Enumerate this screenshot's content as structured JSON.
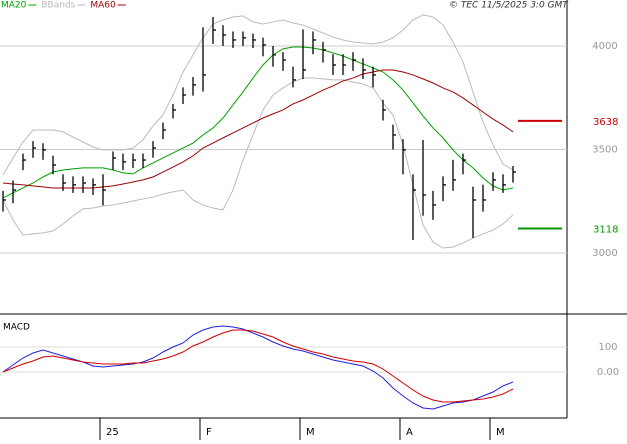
{
  "chart_data": {
    "type": "ohlc",
    "source": "© TEC 11/5/2025 3:0 GMT",
    "categories": [
      null,
      null,
      null,
      null,
      null,
      null,
      null,
      null,
      null,
      null,
      "25",
      null,
      null,
      null,
      null,
      null,
      null,
      null,
      null,
      null,
      "F",
      null,
      null,
      null,
      null,
      null,
      null,
      null,
      null,
      null,
      "M",
      null,
      null,
      null,
      null,
      null,
      null,
      null,
      null,
      null,
      "A",
      null,
      null,
      null,
      null,
      null,
      null,
      null,
      null,
      "M",
      null,
      null
    ],
    "high": [
      3300,
      3350,
      3480,
      3540,
      3530,
      3470,
      3380,
      3370,
      3370,
      3360,
      3380,
      3490,
      3480,
      3480,
      3480,
      3540,
      3630,
      3720,
      3800,
      3850,
      4090,
      4140,
      4100,
      4070,
      4070,
      4060,
      4040,
      4000,
      3970,
      3900,
      4080,
      4070,
      4020,
      3960,
      3960,
      3970,
      3940,
      3900,
      3740,
      3620,
      3550,
      3380,
      3546,
      3300,
      3370,
      3450,
      3480,
      3320,
      3330,
      3390,
      3380,
      3420
    ],
    "low": [
      3200,
      3240,
      3400,
      3460,
      3450,
      3380,
      3300,
      3290,
      3290,
      3280,
      3230,
      3400,
      3400,
      3410,
      3410,
      3460,
      3550,
      3650,
      3720,
      3760,
      3780,
      4010,
      4000,
      3990,
      4000,
      3990,
      3950,
      3900,
      3880,
      3800,
      3840,
      3960,
      3920,
      3860,
      3860,
      3880,
      3840,
      3800,
      3640,
      3500,
      3380,
      3063,
      3180,
      3160,
      3250,
      3300,
      3380,
      3072,
      3200,
      3300,
      3290,
      3340
    ],
    "close": [
      3256,
      3304,
      3449,
      3507,
      3498,
      3425,
      3338,
      3329,
      3338,
      3329,
      3304,
      3459,
      3440,
      3449,
      3449,
      3507,
      3594,
      3691,
      3763,
      3812,
      3860,
      4077,
      4053,
      4029,
      4039,
      4029,
      4005,
      3957,
      3932,
      3836,
      3884,
      4029,
      3981,
      3908,
      3908,
      3932,
      3884,
      3860,
      3691,
      3570,
      3498,
      3304,
      3280,
      3232,
      3329,
      3353,
      3449,
      3256,
      3256,
      3353,
      3329,
      3391
    ],
    "bar_color": "#000000",
    "series": [
      {
        "name": "MA20",
        "color": "#00a000",
        "values": [
          3266,
          3290,
          3314,
          3338,
          3367,
          3391,
          3401,
          3406,
          3411,
          3411,
          3411,
          3401,
          3387,
          3382,
          3411,
          3435,
          3459,
          3483,
          3507,
          3531,
          3570,
          3604,
          3652,
          3715,
          3778,
          3845,
          3908,
          3957,
          3986,
          3995,
          3995,
          3990,
          3981,
          3966,
          3952,
          3932,
          3913,
          3894,
          3874,
          3836,
          3787,
          3725,
          3662,
          3604,
          3556,
          3498,
          3449,
          3411,
          3362,
          3324,
          3304,
          3314
        ]
      },
      {
        "name": "BBands",
        "color": "#bbbbbb",
        "values": [
          3377,
          3459,
          3536,
          3594,
          3594,
          3594,
          3585,
          3560,
          3536,
          3512,
          3498,
          3498,
          3498,
          3507,
          3546,
          3614,
          3667,
          3763,
          3874,
          3957,
          4039,
          4106,
          4126,
          4140,
          4145,
          4116,
          4106,
          4116,
          4126,
          4111,
          4101,
          4082,
          4063,
          4043,
          4029,
          4019,
          4014,
          4010,
          4019,
          4039,
          4077,
          4126,
          4150,
          4140,
          4101,
          4019,
          3923,
          3778,
          3633,
          3522,
          3430,
          3401
        ],
        "lower": [
          3256,
          3160,
          3087,
          3092,
          3097,
          3106,
          3140,
          3179,
          3213,
          3217,
          3227,
          3232,
          3241,
          3251,
          3261,
          3270,
          3285,
          3295,
          3304,
          3256,
          3232,
          3217,
          3208,
          3304,
          3449,
          3570,
          3691,
          3763,
          3797,
          3826,
          3845,
          3845,
          3841,
          3836,
          3836,
          3826,
          3816,
          3797,
          3725,
          3667,
          3522,
          3329,
          3135,
          3053,
          3024,
          3029,
          3048,
          3072,
          3092,
          3111,
          3140,
          3184
        ]
      },
      {
        "name": "MA60",
        "color": "#a00000",
        "values": [
          3338,
          3333,
          3329,
          3324,
          3319,
          3314,
          3314,
          3314,
          3314,
          3314,
          3319,
          3324,
          3333,
          3343,
          3353,
          3367,
          3391,
          3415,
          3440,
          3469,
          3507,
          3531,
          3556,
          3580,
          3604,
          3628,
          3652,
          3672,
          3691,
          3720,
          3739,
          3763,
          3787,
          3807,
          3831,
          3845,
          3865,
          3874,
          3884,
          3884,
          3874,
          3860,
          3841,
          3821,
          3797,
          3778,
          3749,
          3715,
          3681,
          3647,
          3618,
          3585
        ]
      }
    ],
    "levels": [
      {
        "value": 3638,
        "color": "#cc0000"
      },
      {
        "value": 3118,
        "color": "#009900"
      }
    ],
    "ylim": [
      2710,
      4222
    ],
    "yticks": [
      4000,
      3500,
      3000
    ],
    "grid": true,
    "macd": {
      "title": "MACD",
      "ylim": [
        -184,
        224
      ],
      "yticks": [
        100,
        {
          "value": 0,
          "label": "0.00"
        }
      ],
      "series": [
        {
          "color": "#2020e0",
          "values": [
            0,
            28,
            56,
            76,
            88,
            76,
            64,
            52,
            40,
            24,
            20,
            24,
            28,
            32,
            40,
            56,
            80,
            100,
            116,
            148,
            168,
            180,
            184,
            180,
            172,
            156,
            140,
            120,
            104,
            92,
            84,
            72,
            60,
            48,
            40,
            32,
            24,
            4,
            -24,
            -64,
            -96,
            -124,
            -144,
            -148,
            -136,
            -124,
            -120,
            -112,
            -96,
            -80,
            -56,
            -40
          ]
        },
        {
          "color": "#d00000",
          "values": [
            0,
            16,
            32,
            44,
            60,
            64,
            56,
            48,
            40,
            36,
            32,
            32,
            32,
            36,
            36,
            44,
            52,
            64,
            80,
            104,
            120,
            140,
            156,
            168,
            168,
            164,
            152,
            140,
            120,
            104,
            92,
            80,
            72,
            60,
            52,
            44,
            40,
            32,
            12,
            -16,
            -44,
            -72,
            -96,
            -112,
            -120,
            -120,
            -116,
            -112,
            -108,
            -100,
            -88,
            -68
          ]
        }
      ]
    }
  }
}
